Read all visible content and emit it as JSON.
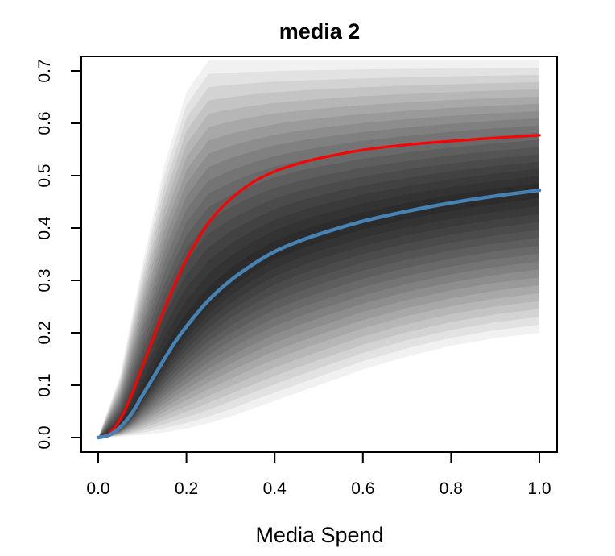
{
  "chart_data": {
    "type": "line",
    "title": "media 2",
    "xlabel": "Media Spend",
    "ylabel": "",
    "xlim": [
      0.0,
      1.0
    ],
    "ylim": [
      0.0,
      0.7
    ],
    "x_ticks": [
      "0.0",
      "0.2",
      "0.4",
      "0.6",
      "0.8",
      "1.0"
    ],
    "y_ticks": [
      "0.0",
      "0.1",
      "0.2",
      "0.3",
      "0.4",
      "0.5",
      "0.6",
      "0.7"
    ],
    "grid": false,
    "legend": "none",
    "band": {
      "description_color": "#000000",
      "x": [
        0.0,
        0.05,
        0.1,
        0.15,
        0.2,
        0.25,
        0.3,
        0.4,
        0.5,
        0.6,
        0.7,
        0.8,
        0.9,
        1.0
      ],
      "upper": [
        0.0,
        0.12,
        0.33,
        0.52,
        0.66,
        0.72,
        0.72,
        0.72,
        0.72,
        0.72,
        0.72,
        0.72,
        0.72,
        0.72
      ],
      "lower": [
        0.0,
        0.002,
        0.005,
        0.01,
        0.017,
        0.027,
        0.04,
        0.07,
        0.1,
        0.13,
        0.155,
        0.175,
        0.19,
        0.2
      ]
    },
    "series": [
      {
        "color": "#ff0000",
        "x": [
          0.0,
          0.025,
          0.05,
          0.075,
          0.1,
          0.125,
          0.15,
          0.175,
          0.2,
          0.25,
          0.3,
          0.35,
          0.4,
          0.45,
          0.5,
          0.6,
          0.7,
          0.8,
          0.9,
          1.0
        ],
        "values": [
          0.0,
          0.008,
          0.035,
          0.08,
          0.135,
          0.19,
          0.245,
          0.295,
          0.34,
          0.41,
          0.455,
          0.487,
          0.508,
          0.522,
          0.533,
          0.549,
          0.559,
          0.566,
          0.572,
          0.577
        ]
      },
      {
        "color": "#4682b4",
        "x": [
          0.0,
          0.025,
          0.05,
          0.075,
          0.1,
          0.125,
          0.15,
          0.175,
          0.2,
          0.25,
          0.3,
          0.35,
          0.4,
          0.45,
          0.5,
          0.6,
          0.7,
          0.8,
          0.9,
          1.0
        ],
        "values": [
          0.0,
          0.005,
          0.02,
          0.045,
          0.08,
          0.115,
          0.15,
          0.183,
          0.212,
          0.262,
          0.3,
          0.33,
          0.355,
          0.373,
          0.388,
          0.413,
          0.432,
          0.448,
          0.461,
          0.472
        ]
      }
    ]
  }
}
